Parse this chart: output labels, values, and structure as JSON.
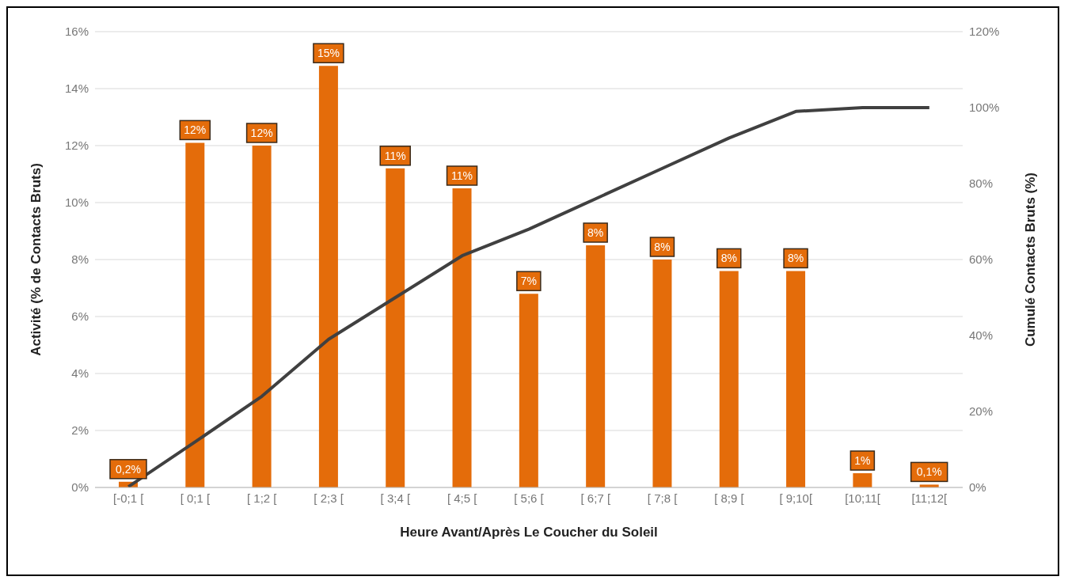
{
  "chart_data": {
    "type": "bar",
    "xlabel": "Heure Avant/Après Le Coucher du Soleil",
    "ylabel": "Activité (% de Contacts Bruts)",
    "y2label": "Cumulé Contacts Bruts (%)",
    "categories": [
      "[-0;1 [",
      "[ 0;1 [",
      "[ 1;2 [",
      "[ 2;3 [",
      "[ 3;4 [",
      "[ 4;5 [",
      "[ 5;6 [",
      "[ 6;7 [",
      "[ 7;8 [",
      "[ 8;9 [",
      "[ 9;10[",
      "[10;11[",
      "[11;12["
    ],
    "series": [
      {
        "color": "#e46c0a",
        "values": [
          0.2,
          12.1,
          12.0,
          14.8,
          11.2,
          10.5,
          6.8,
          8.5,
          8.0,
          7.6,
          7.6,
          0.5,
          0.1
        ],
        "value_labels": [
          "0,2%",
          "12%",
          "12%",
          "15%",
          "11%",
          "11%",
          "7%",
          "8%",
          "8%",
          "8%",
          "8%",
          "1%",
          "0,1%"
        ]
      },
      {
        "type": "line",
        "axis": "y2",
        "color": "#404040",
        "values": [
          0.2,
          12,
          24,
          39,
          50,
          61,
          68,
          76,
          84,
          92,
          99,
          100,
          100
        ]
      }
    ],
    "ylim": [
      0,
      16
    ],
    "yticks": [
      {
        "value": 0,
        "label": "0%"
      },
      {
        "value": 2,
        "label": "2%"
      },
      {
        "value": 4,
        "label": "4%"
      },
      {
        "value": 6,
        "label": "6%"
      },
      {
        "value": 8,
        "label": "8%"
      },
      {
        "value": 10,
        "label": "10%"
      },
      {
        "value": 12,
        "label": "12%"
      },
      {
        "value": 14,
        "label": "14%"
      },
      {
        "value": 16,
        "label": "16%"
      }
    ],
    "y2lim": [
      0,
      120
    ],
    "y2ticks": [
      {
        "value": 0,
        "label": "0%"
      },
      {
        "value": 20,
        "label": "20%"
      },
      {
        "value": 40,
        "label": "40%"
      },
      {
        "value": 60,
        "label": "60%"
      },
      {
        "value": 80,
        "label": "80%"
      },
      {
        "value": 100,
        "label": "100%"
      },
      {
        "value": 120,
        "label": "120%"
      }
    ],
    "grid": "y",
    "legend": false,
    "marker": "none",
    "line_style": "solid"
  }
}
